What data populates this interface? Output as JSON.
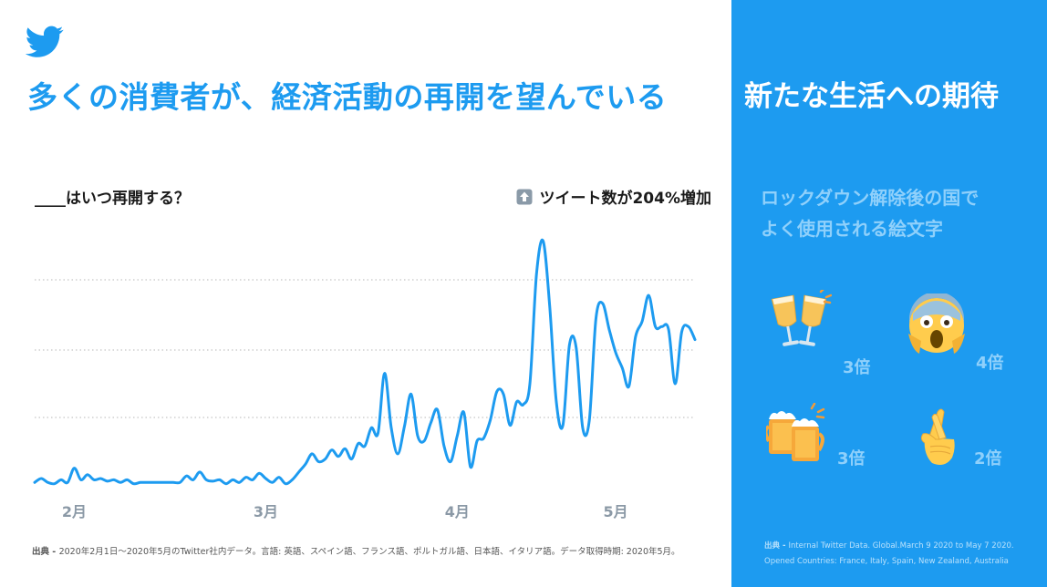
{
  "header": {
    "title": "多くの消費者が、経済活動の再開を望んでいる"
  },
  "sidebar": {
    "title": "新たな生活への期待",
    "subtitle_line1": "ロックダウン解除後の国で",
    "subtitle_line2": "よく使用される絵文字",
    "emojis": [
      {
        "icon": "clinking-glasses-icon",
        "value": "3倍"
      },
      {
        "icon": "screaming-face-icon",
        "value": "4倍"
      },
      {
        "icon": "clinking-beer-mugs-icon",
        "value": "3倍"
      },
      {
        "icon": "crossed-fingers-icon",
        "value": "2倍"
      }
    ],
    "source_label": "出典 - ",
    "source_text": "Internal Twitter Data. Global.March 9 2020 to May 7 2020.",
    "countries": "Opened Countries: France, Italy, Spain, New Zealand, Australia"
  },
  "source": {
    "label": "出典 - ",
    "text": "2020年2月1日〜2020年5月のTwitter社内データ。言語: 英語、スペイン語、フランス語、ポルトガル語、日本語、イタリア語。データ取得時期: 2020年5月。"
  },
  "chart_data": {
    "type": "line",
    "title": "____はいつ再開する？",
    "annotation": "ツイート数が204%増加",
    "annotation_icon": "up-arrow-icon",
    "x_tick_labels": [
      "2月",
      "3月",
      "4月",
      "5月"
    ],
    "x_tick_positions": [
      6,
      35,
      64,
      88
    ],
    "ylim": [
      0,
      100
    ],
    "y_axis_labels": "none",
    "grid": "horizontal dotted",
    "line_color": "#1d9bf0",
    "series": [
      {
        "values": [
          [
            0,
            2
          ],
          [
            1,
            3.5
          ],
          [
            2,
            2
          ],
          [
            3,
            1.5
          ],
          [
            4,
            3
          ],
          [
            5,
            2
          ],
          [
            6,
            7.5
          ],
          [
            7,
            3
          ],
          [
            8,
            5
          ],
          [
            9,
            3
          ],
          [
            10,
            3.5
          ],
          [
            11,
            2.5
          ],
          [
            12,
            3
          ],
          [
            13,
            2
          ],
          [
            14,
            3
          ],
          [
            15,
            1.5
          ],
          [
            16,
            2
          ],
          [
            17,
            2
          ],
          [
            18,
            2
          ],
          [
            19,
            2
          ],
          [
            20,
            2
          ],
          [
            21,
            2
          ],
          [
            22,
            2
          ],
          [
            23,
            4.5
          ],
          [
            24,
            3
          ],
          [
            25,
            6
          ],
          [
            26,
            3
          ],
          [
            27,
            2.5
          ],
          [
            28,
            3
          ],
          [
            29,
            1.5
          ],
          [
            30,
            3
          ],
          [
            31,
            2
          ],
          [
            32,
            4
          ],
          [
            33,
            3
          ],
          [
            34,
            5.5
          ],
          [
            35,
            3.5
          ],
          [
            36,
            2
          ],
          [
            37,
            4
          ],
          [
            38,
            1.5
          ],
          [
            39,
            3
          ],
          [
            40,
            6
          ],
          [
            41,
            9
          ],
          [
            42,
            13
          ],
          [
            43,
            10
          ],
          [
            44,
            11
          ],
          [
            45,
            14.5
          ],
          [
            46,
            12
          ],
          [
            47,
            15
          ],
          [
            48,
            11
          ],
          [
            49,
            17
          ],
          [
            50,
            16
          ],
          [
            51,
            23
          ],
          [
            52,
            21
          ],
          [
            53,
            44
          ],
          [
            54,
            23
          ],
          [
            55,
            13
          ],
          [
            56,
            23.5
          ],
          [
            57,
            36
          ],
          [
            58,
            20
          ],
          [
            59,
            18
          ],
          [
            60,
            25
          ],
          [
            61,
            30
          ],
          [
            62,
            16
          ],
          [
            63,
            10
          ],
          [
            64,
            20
          ],
          [
            65,
            29
          ],
          [
            66,
            8
          ],
          [
            67,
            18
          ],
          [
            68,
            19
          ],
          [
            69,
            26
          ],
          [
            70,
            37
          ],
          [
            71,
            36
          ],
          [
            72,
            24
          ],
          [
            73,
            33
          ],
          [
            74,
            32
          ],
          [
            75,
            40
          ],
          [
            76,
            82
          ],
          [
            77,
            95
          ],
          [
            78,
            70
          ],
          [
            79,
            33
          ],
          [
            80,
            24
          ],
          [
            81,
            55
          ],
          [
            82,
            54
          ],
          [
            83,
            23
          ],
          [
            84,
            26
          ],
          [
            85,
            65
          ],
          [
            86,
            71
          ],
          [
            87,
            61
          ],
          [
            88,
            52
          ],
          [
            89,
            46
          ],
          [
            90,
            39
          ],
          [
            91,
            58
          ],
          [
            92,
            64
          ],
          [
            93,
            74
          ],
          [
            94,
            62
          ],
          [
            95,
            62
          ],
          [
            96,
            61
          ],
          [
            97,
            40
          ],
          [
            98,
            60
          ],
          [
            99,
            62
          ],
          [
            100,
            57
          ]
        ]
      }
    ]
  }
}
